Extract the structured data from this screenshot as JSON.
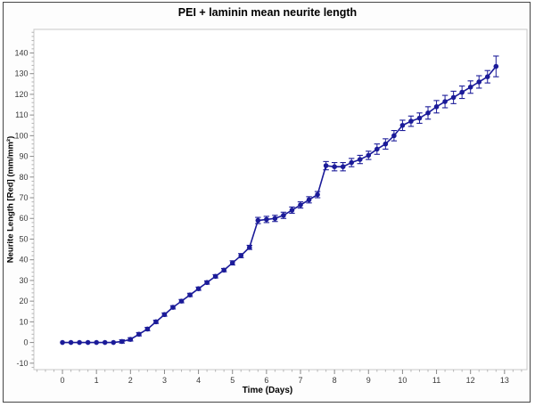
{
  "figure": {
    "background": "#fdfdfd",
    "border_color": "#454545",
    "plot_border_color": "#c8c8c8",
    "tick_color": "#8a8a8a",
    "tick_label_color": "#3a3a3a"
  },
  "chart_data": {
    "type": "line",
    "title": "PEI + laminin mean neurite length",
    "xlabel": "Time (Days)",
    "ylabel": "Neurite Length [Red] (mm/mm²)",
    "line_color": "#1b1b99",
    "marker": "circle",
    "grid": false,
    "legend": "none",
    "xlim": [
      -0.84,
      13.66
    ],
    "ylim": [
      -13.1,
      151.4
    ],
    "x_ticks": [
      0,
      1,
      2,
      3,
      4,
      5,
      6,
      7,
      8,
      9,
      10,
      11,
      12,
      13
    ],
    "y_ticks": [
      -10,
      0,
      10,
      20,
      30,
      40,
      50,
      60,
      70,
      80,
      90,
      100,
      110,
      120,
      130,
      140
    ],
    "x_minor_step": 0.25,
    "y_minor_step": 2,
    "series": [
      {
        "name": "PEI + laminin mean neurite length",
        "x": [
          0,
          0.25,
          0.5,
          0.75,
          1,
          1.25,
          1.5,
          1.75,
          2,
          2.25,
          2.5,
          2.75,
          3,
          3.25,
          3.5,
          3.75,
          4,
          4.25,
          4.5,
          4.75,
          5,
          5.25,
          5.5,
          5.75,
          6,
          6.25,
          6.5,
          6.75,
          7,
          7.25,
          7.5,
          7.75,
          8,
          8.25,
          8.5,
          8.75,
          9,
          9.25,
          9.5,
          9.75,
          10,
          10.25,
          10.5,
          10.75,
          11,
          11.25,
          11.5,
          11.75,
          12,
          12.25,
          12.5,
          12.75
        ],
        "y": [
          0,
          0,
          0,
          0,
          0,
          0,
          0,
          0.5,
          1.5,
          4,
          6.5,
          10,
          13.5,
          17,
          20,
          23,
          26,
          29,
          32,
          35,
          38.5,
          42,
          46,
          59,
          59.5,
          60,
          61.5,
          64,
          66.5,
          69,
          71.5,
          85.5,
          85,
          85,
          87,
          88.5,
          90.5,
          93.5,
          96,
          100,
          105,
          107,
          108.5,
          111,
          114,
          116.5,
          118.5,
          121,
          123.5,
          126,
          128.5,
          133.5
        ],
        "yerr": [
          0,
          0,
          0,
          0,
          0,
          0,
          0,
          0.8,
          0.8,
          0.8,
          0.8,
          0.8,
          0.8,
          0.8,
          0.8,
          0.8,
          0.8,
          0.8,
          0.8,
          0.8,
          1,
          1,
          1,
          1.5,
          1.5,
          1.5,
          1.5,
          1.5,
          1.5,
          1.5,
          1.5,
          2,
          2,
          2,
          2,
          2,
          2,
          2.5,
          2.5,
          2.5,
          2.5,
          2.5,
          2.5,
          3,
          3,
          3,
          3,
          3,
          3,
          3,
          3,
          5
        ]
      }
    ]
  }
}
